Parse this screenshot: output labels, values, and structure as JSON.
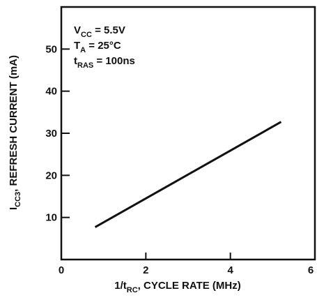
{
  "chart_data": {
    "type": "line",
    "xlabel": [
      "1/t",
      "RC",
      ", CYCLE RATE (MHz)"
    ],
    "ylabel": [
      "I",
      "CC3",
      ", REFRESH CURRENT (mA)"
    ],
    "annotations": [
      [
        "V",
        "CC",
        " = 5.5V"
      ],
      [
        "T",
        "A",
        " = 25°C"
      ],
      [
        "t",
        "RAS",
        " = 100ns"
      ]
    ],
    "x": [
      0.8,
      5.2
    ],
    "series": [
      {
        "color": "#111111",
        "values": [
          7.7,
          32.7
        ]
      }
    ],
    "xlim": [
      0,
      6
    ],
    "xticks": [
      0,
      2,
      4,
      6
    ],
    "ylim": [
      0,
      60
    ],
    "yticks": [
      10,
      20,
      30,
      40,
      50
    ],
    "grid": false
  }
}
